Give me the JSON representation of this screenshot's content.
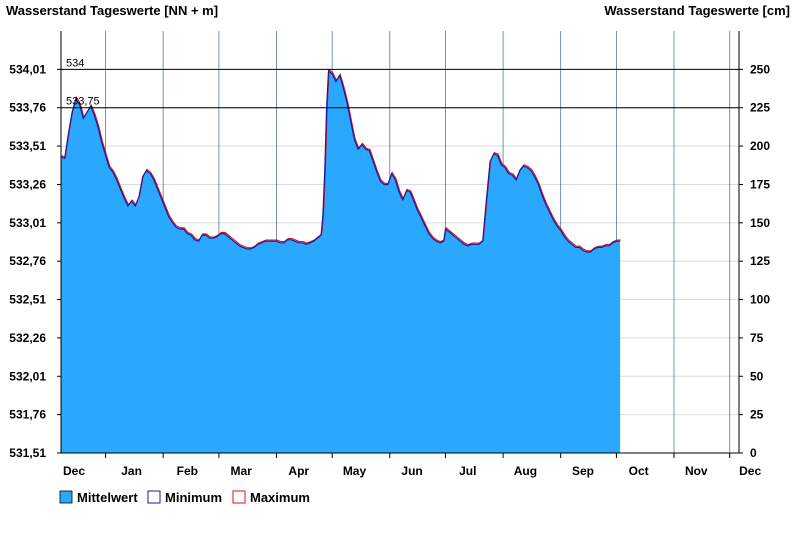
{
  "chart_data": {
    "type": "area",
    "title_left": "Wasserstand Tageswerte [NN + m]",
    "title_right": "Wasserstand Tageswerte [cm]",
    "y_left": {
      "min": 531.51,
      "max": 534.26,
      "ticks": [
        "534,01",
        "533,76",
        "533,51",
        "533,26",
        "533,01",
        "532,76",
        "532,51",
        "532,26",
        "532,01",
        "531,76",
        "531,51"
      ],
      "tick_values": [
        534.01,
        533.76,
        533.51,
        533.26,
        533.01,
        532.76,
        532.51,
        532.26,
        532.01,
        531.76,
        531.51
      ]
    },
    "y_right": {
      "min": 0,
      "max": 275,
      "ticks": [
        "250",
        "225",
        "200",
        "175",
        "150",
        "125",
        "100",
        "75",
        "50",
        "25",
        "0"
      ],
      "tick_values": [
        250,
        225,
        200,
        175,
        150,
        125,
        100,
        75,
        50,
        25,
        0
      ]
    },
    "x_axis": {
      "start_day": 0,
      "end_day": 365,
      "month_labels": [
        {
          "label": "Dec",
          "day": 7
        },
        {
          "label": "Jan",
          "day": 38
        },
        {
          "label": "Feb",
          "day": 68
        },
        {
          "label": "Mar",
          "day": 97
        },
        {
          "label": "Apr",
          "day": 128
        },
        {
          "label": "May",
          "day": 158
        },
        {
          "label": "Jun",
          "day": 189
        },
        {
          "label": "Jul",
          "day": 219
        },
        {
          "label": "Aug",
          "day": 250
        },
        {
          "label": "Sep",
          "day": 281
        },
        {
          "label": "Oct",
          "day": 311
        },
        {
          "label": "Nov",
          "day": 342
        },
        {
          "label": "Dec",
          "day": 371
        }
      ],
      "month_boundaries": [
        24,
        55,
        85,
        116,
        146,
        177,
        207,
        238,
        269,
        299,
        330,
        360
      ]
    },
    "reference_lines": [
      {
        "value_cm": 250,
        "label": "534"
      },
      {
        "value_cm": 225,
        "label": "533,75"
      }
    ],
    "series": [
      {
        "name": "Mittelwert",
        "color": "#29a8fe"
      },
      {
        "name": "Minimum",
        "color": "#1a1aa0"
      },
      {
        "name": "Maximum",
        "color": "#e01010"
      }
    ],
    "daily_points_cm": [
      [
        0,
        193
      ],
      [
        2,
        192
      ],
      [
        4,
        208
      ],
      [
        6,
        222
      ],
      [
        8,
        231
      ],
      [
        10,
        227
      ],
      [
        12,
        218
      ],
      [
        14,
        222
      ],
      [
        16,
        226
      ],
      [
        18,
        220
      ],
      [
        20,
        212
      ],
      [
        22,
        202
      ],
      [
        24,
        194
      ],
      [
        26,
        186
      ],
      [
        28,
        183
      ],
      [
        30,
        178
      ],
      [
        32,
        172
      ],
      [
        34,
        166
      ],
      [
        36,
        161
      ],
      [
        38,
        164
      ],
      [
        40,
        161
      ],
      [
        42,
        167
      ],
      [
        44,
        180
      ],
      [
        46,
        184
      ],
      [
        48,
        182
      ],
      [
        50,
        178
      ],
      [
        52,
        172
      ],
      [
        54,
        166
      ],
      [
        56,
        160
      ],
      [
        58,
        154
      ],
      [
        60,
        150
      ],
      [
        62,
        147
      ],
      [
        64,
        146
      ],
      [
        66,
        146
      ],
      [
        68,
        143
      ],
      [
        70,
        142
      ],
      [
        72,
        139
      ],
      [
        74,
        138
      ],
      [
        76,
        142
      ],
      [
        78,
        142
      ],
      [
        80,
        140
      ],
      [
        82,
        140
      ],
      [
        84,
        141
      ],
      [
        86,
        143
      ],
      [
        88,
        143
      ],
      [
        90,
        141
      ],
      [
        92,
        139
      ],
      [
        94,
        137
      ],
      [
        96,
        135
      ],
      [
        98,
        134
      ],
      [
        100,
        133
      ],
      [
        102,
        133
      ],
      [
        104,
        134
      ],
      [
        106,
        136
      ],
      [
        108,
        137
      ],
      [
        110,
        138
      ],
      [
        112,
        138
      ],
      [
        114,
        138
      ],
      [
        116,
        138
      ],
      [
        118,
        137
      ],
      [
        120,
        137
      ],
      [
        122,
        139
      ],
      [
        124,
        139
      ],
      [
        126,
        138
      ],
      [
        128,
        137
      ],
      [
        130,
        137
      ],
      [
        132,
        136
      ],
      [
        134,
        137
      ],
      [
        136,
        138
      ],
      [
        138,
        140
      ],
      [
        140,
        142
      ],
      [
        141,
        155
      ],
      [
        142,
        185
      ],
      [
        143,
        225
      ],
      [
        144,
        249
      ],
      [
        146,
        247
      ],
      [
        148,
        242
      ],
      [
        150,
        246
      ],
      [
        152,
        238
      ],
      [
        154,
        228
      ],
      [
        156,
        216
      ],
      [
        158,
        204
      ],
      [
        160,
        198
      ],
      [
        162,
        201
      ],
      [
        164,
        198
      ],
      [
        166,
        197
      ],
      [
        168,
        190
      ],
      [
        170,
        183
      ],
      [
        172,
        177
      ],
      [
        174,
        175
      ],
      [
        176,
        175
      ],
      [
        178,
        182
      ],
      [
        180,
        178
      ],
      [
        182,
        170
      ],
      [
        184,
        165
      ],
      [
        186,
        171
      ],
      [
        188,
        170
      ],
      [
        190,
        164
      ],
      [
        192,
        158
      ],
      [
        194,
        153
      ],
      [
        196,
        148
      ],
      [
        198,
        143
      ],
      [
        200,
        140
      ],
      [
        202,
        138
      ],
      [
        204,
        137
      ],
      [
        206,
        138
      ],
      [
        207,
        146
      ],
      [
        209,
        144
      ],
      [
        211,
        142
      ],
      [
        213,
        140
      ],
      [
        215,
        138
      ],
      [
        217,
        136
      ],
      [
        219,
        135
      ],
      [
        221,
        136
      ],
      [
        223,
        136
      ],
      [
        225,
        136
      ],
      [
        227,
        138
      ],
      [
        229,
        165
      ],
      [
        231,
        190
      ],
      [
        233,
        195
      ],
      [
        235,
        194
      ],
      [
        237,
        188
      ],
      [
        239,
        186
      ],
      [
        241,
        182
      ],
      [
        243,
        181
      ],
      [
        245,
        178
      ],
      [
        247,
        184
      ],
      [
        249,
        187
      ],
      [
        251,
        186
      ],
      [
        253,
        184
      ],
      [
        255,
        180
      ],
      [
        257,
        175
      ],
      [
        259,
        168
      ],
      [
        261,
        162
      ],
      [
        263,
        157
      ],
      [
        265,
        152
      ],
      [
        267,
        148
      ],
      [
        269,
        145
      ],
      [
        271,
        141
      ],
      [
        273,
        138
      ],
      [
        275,
        136
      ],
      [
        277,
        134
      ],
      [
        279,
        134
      ],
      [
        281,
        132
      ],
      [
        283,
        131
      ],
      [
        285,
        131
      ],
      [
        287,
        133
      ],
      [
        289,
        134
      ],
      [
        291,
        134
      ],
      [
        293,
        135
      ],
      [
        295,
        135
      ],
      [
        297,
        137
      ],
      [
        299,
        138
      ],
      [
        301,
        138
      ]
    ]
  },
  "legend": {
    "items": [
      {
        "label": "Mittelwert"
      },
      {
        "label": "Minimum"
      },
      {
        "label": "Maximum"
      }
    ]
  }
}
